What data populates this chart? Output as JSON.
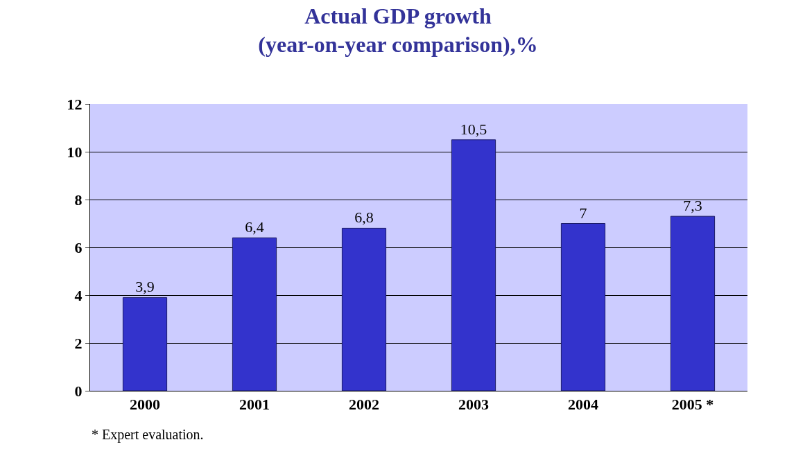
{
  "chart_data": {
    "type": "bar",
    "title": "Actual GDP growth\n(year-on-year comparison),%",
    "categories": [
      "2000",
      "2001",
      "2002",
      "2003",
      "2004",
      "2005 *"
    ],
    "values": [
      3.9,
      6.4,
      6.8,
      10.5,
      7,
      7.3
    ],
    "value_labels": [
      "3,9",
      "6,4",
      "6,8",
      "10,5",
      "7",
      "7,3"
    ],
    "color": "#3333cc",
    "ylim": [
      0,
      12
    ],
    "yticks": [
      0,
      2,
      4,
      6,
      8,
      10,
      12
    ],
    "grid": "y",
    "annotations": [
      "* Expert evaluation."
    ]
  }
}
